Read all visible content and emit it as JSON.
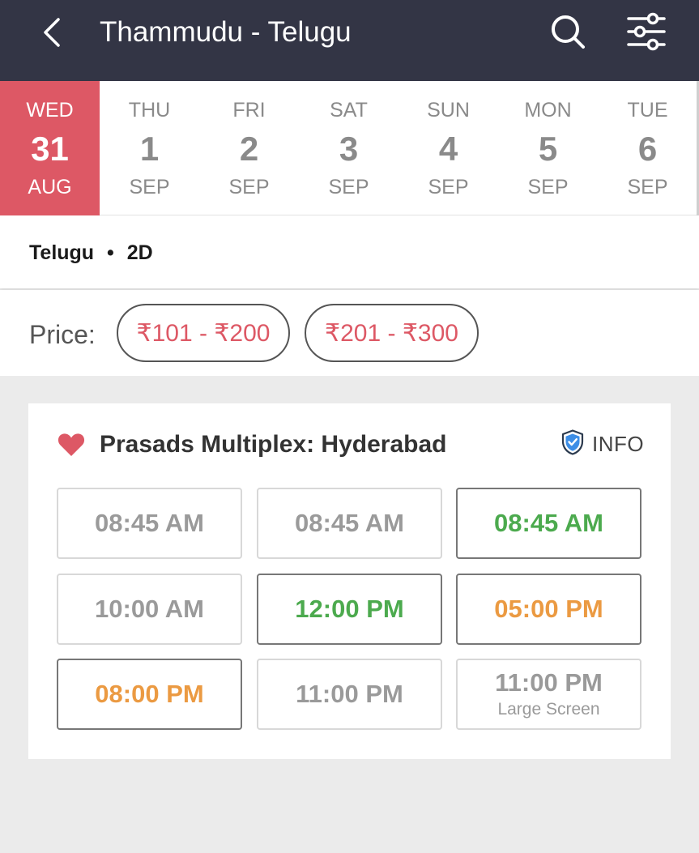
{
  "header": {
    "title": "Thammudu - Telugu",
    "bg_color": "#333545",
    "icons": [
      "back-arrow-icon",
      "search-icon",
      "filter-sliders-icon"
    ]
  },
  "dates": [
    {
      "dow": "WED",
      "day": "31",
      "month": "AUG",
      "selected": true
    },
    {
      "dow": "THU",
      "day": "1",
      "month": "SEP",
      "selected": false
    },
    {
      "dow": "FRI",
      "day": "2",
      "month": "SEP",
      "selected": false
    },
    {
      "dow": "SAT",
      "day": "3",
      "month": "SEP",
      "selected": false
    },
    {
      "dow": "SUN",
      "day": "4",
      "month": "SEP",
      "selected": false
    },
    {
      "dow": "MON",
      "day": "5",
      "month": "SEP",
      "selected": false
    },
    {
      "dow": "TUE",
      "day": "6",
      "month": "SEP",
      "selected": false
    }
  ],
  "selected_date_color": "#dd5865",
  "format": {
    "language": "Telugu",
    "separator": "•",
    "dimension": "2D"
  },
  "price_filter": {
    "label": "Price:",
    "options": [
      "₹101 - ₹200",
      "₹201 - ₹300"
    ]
  },
  "venue": {
    "name": "Prasads Multiplex: Hyderabad",
    "info_label": "INFO",
    "favorite_color": "#dd5865",
    "showtimes": [
      {
        "time": "08:45 AM",
        "status": "unavailable"
      },
      {
        "time": "08:45 AM",
        "status": "unavailable"
      },
      {
        "time": "08:45 AM",
        "status": "available"
      },
      {
        "time": "10:00 AM",
        "status": "unavailable"
      },
      {
        "time": "12:00 PM",
        "status": "available"
      },
      {
        "time": "05:00 PM",
        "status": "filling-fast"
      },
      {
        "time": "08:00 PM",
        "status": "filling-fast"
      },
      {
        "time": "11:00 PM",
        "status": "unavailable"
      },
      {
        "time": "11:00 PM",
        "status": "unavailable",
        "note": "Large Screen"
      }
    ]
  },
  "status_colors": {
    "available": "#4caa4e",
    "filling-fast": "#eb9a42",
    "unavailable": "#9a9a9a"
  }
}
